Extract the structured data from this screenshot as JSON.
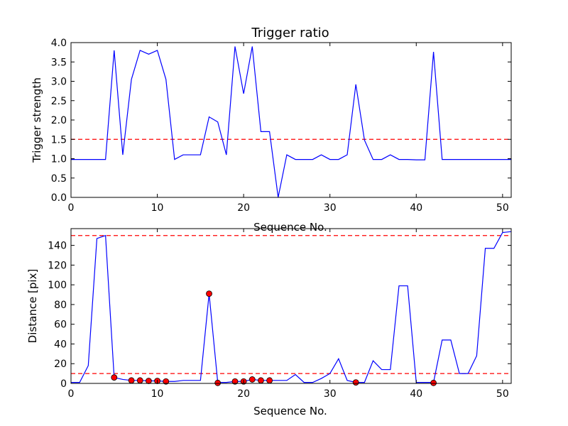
{
  "chart_data": [
    {
      "type": "line",
      "title": "Trigger ratio",
      "xlabel": "Sequence No.",
      "ylabel": "Trigger strength",
      "xlim": [
        0,
        51
      ],
      "ylim": [
        0,
        4.0
      ],
      "xticks": [
        0,
        10,
        20,
        30,
        40,
        50
      ],
      "yticks": [
        0.0,
        0.5,
        1.0,
        1.5,
        2.0,
        2.5,
        3.0,
        3.5,
        4.0
      ],
      "ytick_labels": [
        "0.0",
        "0.5",
        "1.0",
        "1.5",
        "2.0",
        "2.5",
        "3.0",
        "3.5",
        "4.0"
      ],
      "grid": false,
      "series": [
        {
          "color": "#0000ff",
          "x": [
            0,
            1,
            2,
            3,
            4,
            5,
            6,
            7,
            8,
            9,
            10,
            11,
            12,
            13,
            14,
            15,
            16,
            17,
            18,
            19,
            20,
            21,
            22,
            23,
            24,
            25,
            26,
            27,
            28,
            29,
            30,
            31,
            32,
            33,
            34,
            35,
            36,
            37,
            38,
            39,
            40,
            41,
            42,
            43,
            44,
            45,
            46,
            47,
            48,
            49,
            50,
            51
          ],
          "values": [
            0.98,
            0.98,
            0.98,
            0.98,
            0.98,
            3.8,
            1.1,
            3.05,
            3.8,
            3.7,
            3.8,
            3.05,
            0.98,
            1.1,
            1.1,
            1.1,
            2.08,
            1.95,
            1.1,
            3.9,
            2.68,
            3.9,
            1.7,
            1.7,
            0.0,
            1.1,
            0.98,
            0.98,
            0.98,
            1.1,
            0.98,
            0.98,
            1.1,
            2.92,
            1.48,
            0.98,
            0.98,
            1.1,
            0.98,
            0.98,
            0.97,
            0.97,
            3.76,
            0.98,
            0.98,
            0.98,
            0.98,
            0.98,
            0.98,
            0.98,
            0.98,
            0.98
          ]
        }
      ],
      "reference_lines": [
        {
          "y": 1.5,
          "color": "#ff0000",
          "style": "dashed"
        }
      ]
    },
    {
      "type": "line",
      "title": "",
      "xlabel": "Sequence No.",
      "ylabel": "Distance [pix]",
      "xlim": [
        0,
        51
      ],
      "ylim": [
        0,
        157
      ],
      "xticks": [
        0,
        10,
        20,
        30,
        40,
        50
      ],
      "yticks": [
        0,
        20,
        40,
        60,
        80,
        100,
        120,
        140
      ],
      "ytick_labels": [
        "0",
        "20",
        "40",
        "60",
        "80",
        "100",
        "120",
        "140"
      ],
      "grid": false,
      "series": [
        {
          "color": "#0000ff",
          "x": [
            0,
            1,
            2,
            3,
            4,
            5,
            6,
            7,
            8,
            9,
            10,
            11,
            12,
            13,
            14,
            15,
            16,
            17,
            18,
            19,
            20,
            21,
            22,
            23,
            24,
            25,
            26,
            27,
            28,
            29,
            30,
            31,
            32,
            33,
            34,
            35,
            36,
            37,
            38,
            39,
            40,
            41,
            42,
            43,
            44,
            45,
            46,
            47,
            48,
            49,
            50,
            51
          ],
          "values": [
            1,
            1,
            18,
            147,
            150,
            6,
            4,
            3,
            3,
            2.5,
            2.5,
            2,
            2,
            3,
            3,
            3,
            91,
            1,
            1,
            2,
            2,
            4,
            3,
            3,
            3,
            3,
            9,
            1,
            1,
            5,
            10,
            25,
            3,
            1,
            1,
            23,
            14,
            14,
            99,
            99,
            1,
            1,
            1,
            44,
            44,
            10,
            10,
            28,
            137,
            137,
            153,
            154
          ]
        }
      ],
      "markers": {
        "color": "#ff0000",
        "x": [
          5,
          7,
          8,
          9,
          10,
          11,
          16,
          17,
          19,
          20,
          21,
          22,
          23,
          33,
          42
        ],
        "values": [
          6,
          3,
          3,
          2.5,
          2.5,
          2,
          91,
          0.5,
          2,
          2,
          4,
          3,
          3,
          1,
          0.5
        ]
      },
      "reference_lines": [
        {
          "y": 150,
          "color": "#ff0000",
          "style": "dashed"
        },
        {
          "y": 10,
          "color": "#ff0000",
          "style": "dashed"
        }
      ]
    }
  ]
}
